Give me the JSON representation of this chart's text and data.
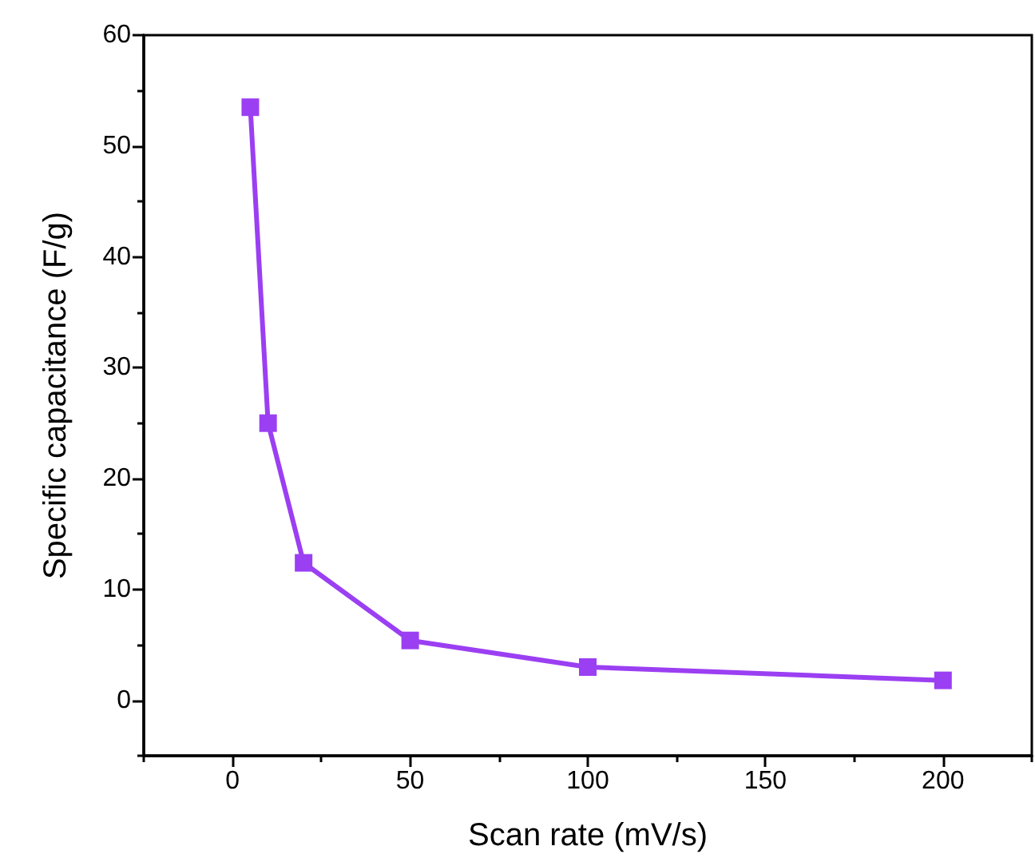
{
  "chart_data": {
    "type": "line",
    "xlabel": "Scan rate (mV/s)",
    "ylabel": "Specific capacitance (F/g)",
    "x": [
      5,
      10,
      20,
      50,
      100,
      200
    ],
    "series": [
      {
        "color": "#9b3ff2",
        "values": [
          53.5,
          25.0,
          12.4,
          5.4,
          3.0,
          1.8
        ]
      }
    ],
    "xlim": [
      -25,
      225
    ],
    "xticks": [
      0,
      50,
      100,
      150,
      200
    ],
    "ylim": [
      -5,
      60
    ],
    "yticks": [
      0,
      10,
      20,
      30,
      40,
      50,
      60
    ],
    "marker": "square",
    "line_style": "solid"
  }
}
